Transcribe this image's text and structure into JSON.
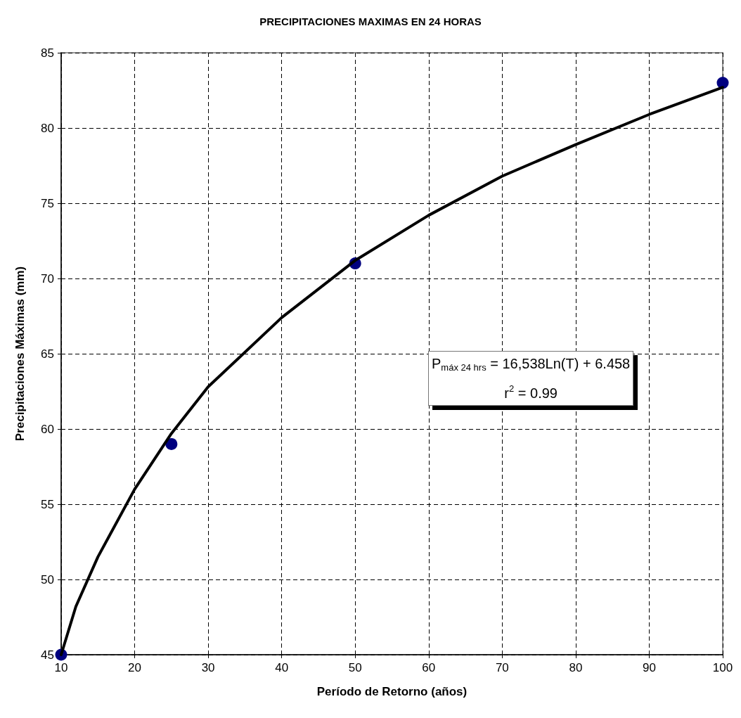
{
  "chart_data": {
    "type": "scatter",
    "title": "PRECIPITACIONES MAXIMAS EN 24 HORAS",
    "xlabel": "Período de Retorno (años)",
    "ylabel": "Precipitaciones Máximas (mm)",
    "series": [
      {
        "color": "#000080",
        "marker": "circle",
        "x": [
          10,
          25,
          50,
          100
        ],
        "values": [
          45,
          59,
          71,
          83
        ]
      },
      {
        "type": "line",
        "color": "#000000",
        "marker": "none",
        "line_style": "solid",
        "x": [
          10,
          12,
          15,
          20,
          25,
          30,
          40,
          50,
          60,
          70,
          80,
          90,
          100
        ],
        "values": [
          45,
          48.2,
          51.5,
          56,
          59.7,
          62.8,
          67.4,
          71.2,
          74.2,
          76.8,
          78.9,
          80.9,
          82.7
        ]
      }
    ],
    "annotations": [
      "P$_{máx 24 hrs}$ = 16,538Ln(T) + 6.458",
      "r$^{2}$ = 0.99"
    ],
    "xlim": [
      10,
      100
    ],
    "xticks": [
      10,
      20,
      30,
      40,
      50,
      60,
      70,
      80,
      90,
      100
    ],
    "ylim": [
      45,
      85
    ],
    "yticks": [
      45,
      50,
      55,
      60,
      65,
      70,
      75,
      80,
      85
    ],
    "grid": true
  }
}
